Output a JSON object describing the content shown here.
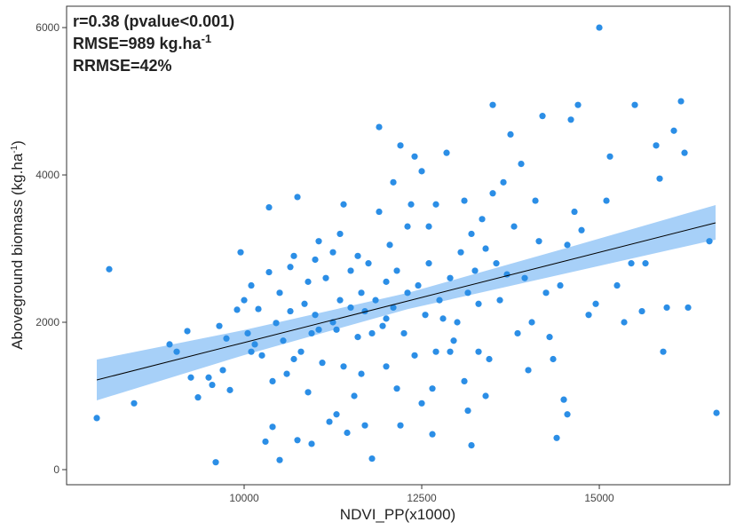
{
  "chart_data": {
    "type": "scatter",
    "annotations": [
      "r=0.38 (pvalue<0.001)",
      "RMSE=989 kg.ha",
      "-1",
      "RRMSE=42%"
    ],
    "x_label": "NDVI_PP(x1000)",
    "y_label": [
      "Aboveground biomass (kg.ha",
      "-1",
      ")"
    ],
    "xlim": [
      7500,
      16837
    ],
    "ylim": [
      -205,
      6290
    ],
    "xticks": [
      10000,
      12500,
      15000
    ],
    "yticks": [
      0,
      2000,
      4000,
      6000
    ],
    "color": "#2b8ee6",
    "x": [
      7925,
      8100,
      8450,
      8950,
      9050,
      9200,
      9250,
      9350,
      9500,
      9550,
      9650,
      9600,
      9700,
      9750,
      9800,
      9900,
      9950,
      10000,
      10050,
      10100,
      10100,
      10150,
      10200,
      10250,
      10300,
      10350,
      10350,
      10400,
      10400,
      10450,
      10500,
      10500,
      10550,
      10600,
      10650,
      10650,
      10700,
      10700,
      10750,
      10750,
      10800,
      10850,
      10900,
      10900,
      10950,
      11000,
      11000,
      11050,
      11050,
      11100,
      11150,
      11200,
      11250,
      11250,
      11300,
      11300,
      11350,
      11350,
      11400,
      11400,
      11450,
      11500,
      11500,
      11550,
      11600,
      11600,
      11650,
      11700,
      11700,
      11750,
      11800,
      11800,
      11850,
      11900,
      11900,
      11950,
      12000,
      12000,
      12050,
      12100,
      12100,
      12150,
      12150,
      12200,
      12200,
      12250,
      12300,
      12300,
      12350,
      12400,
      12400,
      12450,
      12500,
      12500,
      12550,
      12600,
      12600,
      12650,
      12650,
      12700,
      12700,
      12750,
      12800,
      12850,
      12900,
      12950,
      13000,
      13050,
      13100,
      13100,
      13150,
      13150,
      13200,
      13200,
      13250,
      13300,
      13350,
      13400,
      13400,
      13450,
      13500,
      13500,
      13550,
      13600,
      13650,
      13700,
      13750,
      13800,
      13850,
      13900,
      13950,
      14000,
      14050,
      14100,
      14150,
      14200,
      14250,
      14300,
      14350,
      14400,
      14450,
      14500,
      14550,
      14600,
      14650,
      14700,
      14750,
      14850,
      14950,
      15000,
      15100,
      15150,
      15250,
      15350,
      15450,
      15500,
      15600,
      15650,
      15800,
      15850,
      15900,
      15950,
      16050,
      16150,
      16200,
      16250,
      16550,
      16650,
      14550,
      12900,
      13300,
      12000,
      11650,
      10950
    ],
    "values": [
      700,
      2720,
      900,
      1700,
      1600,
      1880,
      1250,
      980,
      1250,
      1150,
      1950,
      100,
      1350,
      1780,
      1080,
      2170,
      2950,
      2300,
      1850,
      1600,
      2500,
      1700,
      2180,
      1550,
      380,
      2680,
      3560,
      1200,
      580,
      1990,
      130,
      2400,
      1750,
      1300,
      2150,
      2750,
      2900,
      1500,
      3700,
      400,
      1600,
      2250,
      2550,
      1050,
      350,
      2100,
      2850,
      1900,
      3100,
      1450,
      2600,
      650,
      2000,
      2950,
      750,
      1900,
      2300,
      3200,
      3600,
      1400,
      500,
      2200,
      2700,
      1000,
      1800,
      2900,
      1300,
      2150,
      600,
      2800,
      1850,
      150,
      2300,
      3500,
      4650,
      1950,
      2550,
      1400,
      3050,
      2200,
      3900,
      1100,
      2700,
      600,
      4400,
      1850,
      2400,
      3300,
      3600,
      4250,
      1550,
      2500,
      4050,
      900,
      2100,
      2800,
      3300,
      1100,
      480,
      3600,
      1600,
      2300,
      2050,
      4300,
      2600,
      1750,
      2000,
      2950,
      3650,
      1200,
      2400,
      800,
      3200,
      330,
      2700,
      2250,
      3400,
      3000,
      1000,
      1500,
      3750,
      4950,
      2800,
      2300,
      3900,
      2650,
      4550,
      3300,
      1850,
      4150,
      2600,
      1350,
      2000,
      3650,
      3100,
      4800,
      2400,
      1800,
      1500,
      430,
      2500,
      950,
      3050,
      4750,
      3500,
      4950,
      3250,
      2100,
      2250,
      6000,
      3650,
      4250,
      2500,
      2000,
      2800,
      4950,
      2150,
      2800,
      4400,
      3950,
      1600,
      2200,
      4600,
      5000,
      4300,
      2200,
      3100,
      770,
      750,
      1600,
      1600,
      2050,
      2400,
      1850
    ],
    "fit": {
      "color": "#000000",
      "band_color": "#a7d0f8",
      "x": [
        7925,
        10000,
        12300,
        14500,
        16637
      ],
      "y": [
        1217,
        1725,
        2288,
        2827,
        3350
      ],
      "lower": [
        940,
        1555,
        2178,
        2657,
        3121
      ],
      "upper": [
        1494,
        1895,
        2398,
        2997,
        3591
      ]
    }
  }
}
